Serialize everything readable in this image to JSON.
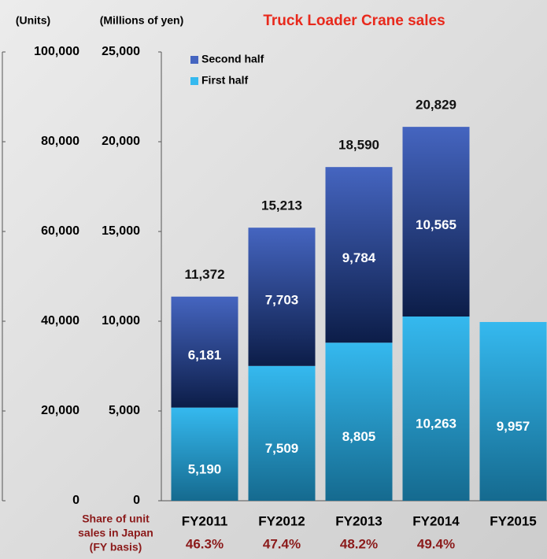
{
  "chart_data": {
    "type": "bar",
    "stacked": true,
    "title": "Truck Loader Crane sales",
    "y_label": "(Millions of yen)",
    "y2_label": "(Units)",
    "categories": [
      "FY2011",
      "FY2012",
      "FY2013",
      "FY2014",
      "FY2015"
    ],
    "series": [
      {
        "name": "First half",
        "color": "#35b9ef",
        "values": [
          5190,
          7509,
          8805,
          10263,
          9957
        ],
        "value_labels": [
          "5,190",
          "7,509",
          "8,805",
          "10,263",
          "9,957"
        ]
      },
      {
        "name": "Second half",
        "color": "#4565c0",
        "values": [
          6181,
          7703,
          9784,
          10565,
          null
        ],
        "value_labels": [
          "6,181",
          "7,703",
          "9,784",
          "10,565",
          null
        ]
      }
    ],
    "totals": {
      "values": [
        11372,
        15213,
        18590,
        20829,
        null
      ],
      "value_labels": [
        "11,372",
        "15,213",
        "18,590",
        "20,829",
        null
      ]
    },
    "ylim": [
      0,
      25000
    ],
    "yticks": [
      0,
      {
        "value": 5000,
        "label": "5,000"
      },
      {
        "value": 10000,
        "label": "10,000"
      },
      {
        "value": 15000,
        "label": "15,000"
      },
      {
        "value": 20000,
        "label": "20,000"
      },
      {
        "value": 25000,
        "label": "25,000"
      }
    ],
    "y2lim": [
      0,
      100000
    ],
    "y2ticks": [
      0,
      {
        "value": 20000,
        "label": "20,000"
      },
      {
        "value": 40000,
        "label": "40,000"
      },
      {
        "value": 60000,
        "label": "60,000"
      },
      {
        "value": 80000,
        "label": "80,000"
      },
      {
        "value": 100000,
        "label": "100,000"
      }
    ],
    "share": {
      "label": [
        "Share of unit",
        "sales in Japan",
        "(FY basis)"
      ],
      "values": [
        46.3,
        47.4,
        48.2,
        49.4,
        null
      ],
      "value_labels": [
        "46.3%",
        "47.4%",
        "48.2%",
        "49.4%",
        null
      ]
    },
    "legend": "top-left"
  }
}
